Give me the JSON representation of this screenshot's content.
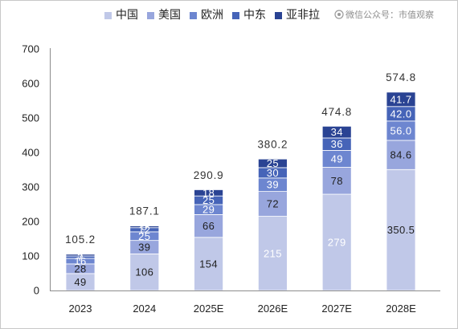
{
  "watermark": "微信公众号：市值观察",
  "chart_data": {
    "type": "bar",
    "stacked": true,
    "categories": [
      "2023",
      "2024",
      "2025E",
      "2026E",
      "2027E",
      "2028E"
    ],
    "series": [
      {
        "name": "中国",
        "color": "#c0c8e8",
        "values": [
          49,
          106,
          154,
          215,
          279,
          350.5
        ],
        "labels": [
          "49",
          "106",
          "154",
          "215",
          "279",
          "350.5"
        ]
      },
      {
        "name": "美国",
        "color": "#98a6dd",
        "values": [
          28,
          39,
          66,
          72,
          78,
          84.6
        ],
        "labels": [
          "28",
          "39",
          "66",
          "72",
          "78",
          "84.6"
        ]
      },
      {
        "name": "欧洲",
        "color": "#6d86d0",
        "values": [
          16,
          25,
          29,
          39,
          49,
          56.0
        ],
        "labels": [
          "16",
          "25",
          "29",
          "39",
          "49",
          "56.0"
        ]
      },
      {
        "name": "中东",
        "color": "#4664b8",
        "values": [
          7,
          12,
          25,
          30,
          36,
          42.0
        ],
        "labels": [
          "7",
          "12",
          "25",
          "30",
          "36",
          "42.0"
        ]
      },
      {
        "name": "亚非拉",
        "color": "#2a4393",
        "values": [
          5,
          5,
          18,
          25,
          34,
          41.7
        ],
        "labels": [
          "5",
          "5",
          "18",
          "25",
          "34",
          "41.7"
        ]
      }
    ],
    "totals": [
      105.2,
      187.1,
      290.9,
      380.2,
      474.8,
      574.8
    ],
    "ylim": [
      0,
      700
    ],
    "yticks": [
      0,
      100,
      200,
      300,
      400,
      500,
      600,
      700
    ],
    "legend": "top",
    "grid": false
  }
}
